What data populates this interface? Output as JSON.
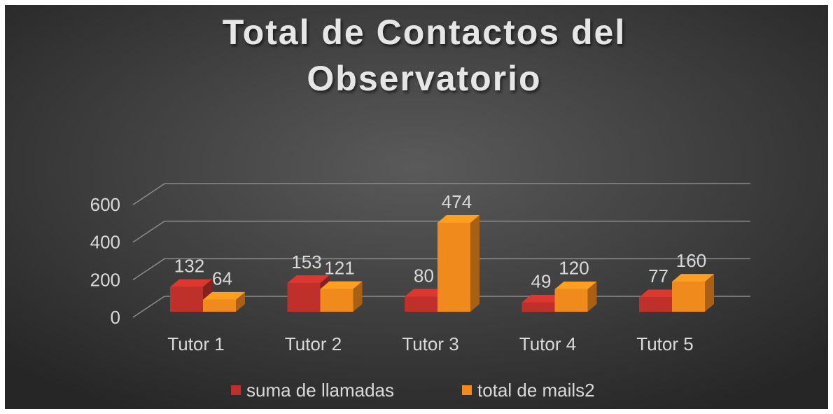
{
  "chart_data": {
    "type": "bar",
    "title": [
      "Total de Contactos del",
      "Observatorio"
    ],
    "categories": [
      "Tutor 1",
      "Tutor 2",
      "Tutor 3",
      "Tutor 4",
      "Tutor 5"
    ],
    "series": [
      {
        "name": "suma de llamadas",
        "color": "#c0302a",
        "values": [
          132,
          153,
          80,
          49,
          77
        ]
      },
      {
        "name": "total de mails2",
        "color": "#f08a1c",
        "values": [
          64,
          121,
          474,
          120,
          160
        ]
      }
    ],
    "ylim": [
      0,
      600
    ],
    "yticks": [
      0,
      200,
      400,
      600
    ],
    "grid": true,
    "legend": "bottom"
  }
}
